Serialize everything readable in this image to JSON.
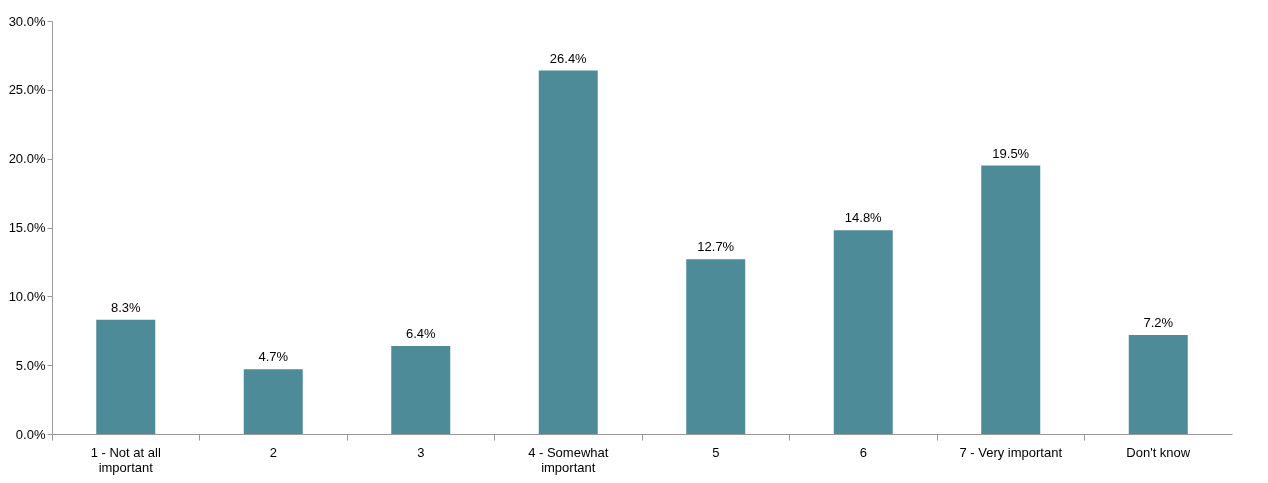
{
  "chart_data": {
    "type": "bar",
    "categories": [
      "1 - Not at all important",
      "2",
      "3",
      "4 - Somewhat important",
      "5",
      "6",
      "7 - Very important",
      "Don't know"
    ],
    "values": [
      8.3,
      4.7,
      6.4,
      26.4,
      12.7,
      14.8,
      19.5,
      7.2
    ],
    "value_labels": [
      "8.3%",
      "4.7%",
      "6.4%",
      "26.4%",
      "12.7%",
      "14.8%",
      "19.5%",
      "7.2%"
    ],
    "color": "#4e8b99",
    "ylim": [
      0,
      30
    ],
    "yticks": [
      {
        "value": 0,
        "label": "0.0%"
      },
      {
        "value": 5,
        "label": "5.0%"
      },
      {
        "value": 10,
        "label": "10.0%"
      },
      {
        "value": 15,
        "label": "15.0%"
      },
      {
        "value": 20,
        "label": "20.0%"
      },
      {
        "value": 25,
        "label": "25.0%"
      },
      {
        "value": 30,
        "label": "30.0%"
      }
    ],
    "grid": false
  }
}
